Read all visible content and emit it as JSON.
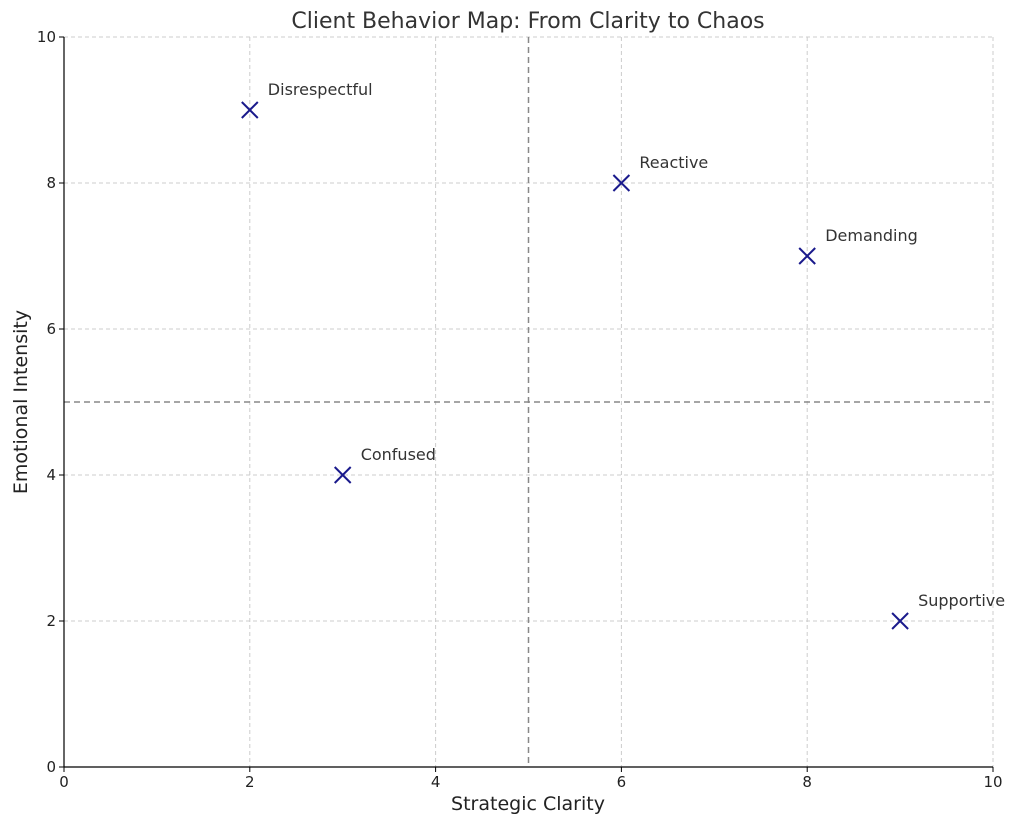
{
  "chart_data": {
    "type": "scatter",
    "title": "Client Behavior Map: From Clarity to Chaos",
    "xlabel": "Strategic Clarity",
    "ylabel": "Emotional Intensity",
    "xlim": [
      0,
      10
    ],
    "ylim": [
      0,
      10
    ],
    "xticks": [
      0,
      2,
      4,
      6,
      8,
      10
    ],
    "yticks": [
      0,
      2,
      4,
      6,
      8,
      10
    ],
    "grid": true,
    "quadrant_lines": {
      "x": 5,
      "y": 5
    },
    "marker": "x",
    "colors": {
      "marker": "#1a1a8c",
      "text": "#333333",
      "grid": "#cccccc",
      "divider": "#888888"
    },
    "points": [
      {
        "label": "Disrespectful",
        "x": 2,
        "y": 9
      },
      {
        "label": "Reactive",
        "x": 6,
        "y": 8
      },
      {
        "label": "Demanding",
        "x": 8,
        "y": 7
      },
      {
        "label": "Confused",
        "x": 3,
        "y": 4
      },
      {
        "label": "Supportive",
        "x": 9,
        "y": 2
      }
    ]
  }
}
